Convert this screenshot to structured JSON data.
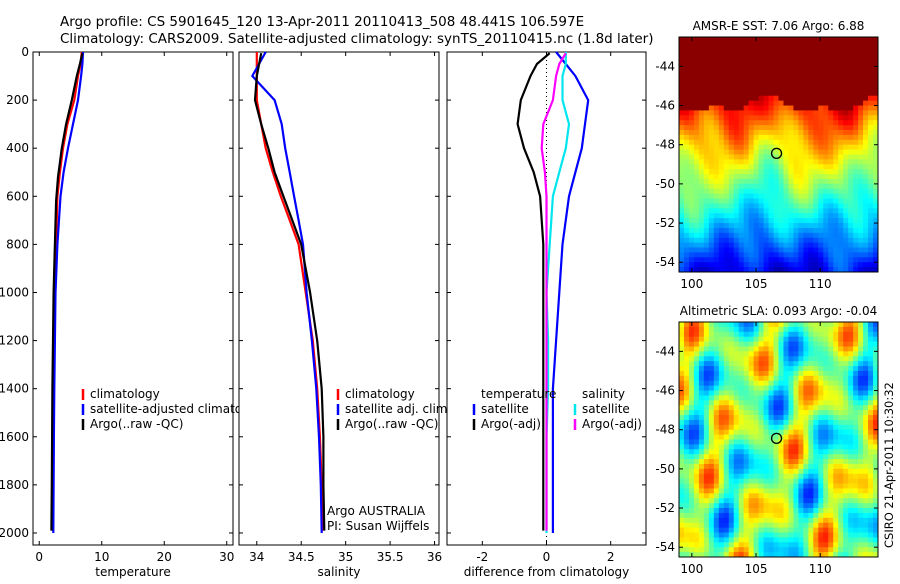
{
  "header": {
    "line1": "Argo profile: CS 5901645_120 13-Apr-2011 20110413_508 48.441S 106.597E",
    "line2": "Climatology: CARS2009. Satellite-adjusted climatology: synTS_20110415.nc (1.8d later)"
  },
  "side_stamp": "CSIRO 21-Apr-2011 10:30:32",
  "colors": {
    "climatology": "#ff0000",
    "satellite": "#0000ff",
    "argo": "#000000",
    "cyan": "#00e5ee",
    "magenta": "#ff00ff"
  },
  "chart_data": [
    {
      "type": "line",
      "xlabel": "temperature",
      "xlim": [
        -1,
        31
      ],
      "ylim": [
        0,
        2050
      ],
      "yreverse": true,
      "xticks": [
        0,
        10,
        20,
        30
      ],
      "yticks": [
        0,
        200,
        400,
        600,
        800,
        1000,
        1200,
        1400,
        1600,
        1800,
        2000
      ],
      "legend": [
        "climatology",
        "satellite-adjusted climatology",
        "Argo(..raw -QC)"
      ],
      "series": [
        {
          "name": "climatology",
          "color": "#ff0000",
          "x": [
            6.8,
            6.6,
            6.2,
            5.6,
            4.5,
            3.8,
            3.3,
            2.9,
            2.7,
            2.5,
            2.4,
            2.3,
            2.2,
            2.1,
            2.05
          ],
          "y": [
            0,
            50,
            100,
            200,
            300,
            400,
            500,
            600,
            800,
            1000,
            1200,
            1400,
            1600,
            1800,
            1990
          ]
        },
        {
          "name": "satellite-adjusted climatology",
          "color": "#0000ff",
          "x": [
            7.0,
            6.9,
            6.7,
            6.2,
            5.4,
            4.6,
            3.9,
            3.4,
            2.9,
            2.6,
            2.5,
            2.4,
            2.35,
            2.3,
            2.25
          ],
          "y": [
            0,
            50,
            100,
            200,
            300,
            400,
            500,
            600,
            800,
            1000,
            1200,
            1400,
            1600,
            1800,
            2000
          ]
        },
        {
          "name": "Argo(..raw -QC)",
          "color": "#000000",
          "x": [
            6.9,
            6.5,
            6.0,
            5.2,
            4.3,
            3.6,
            3.0,
            2.7,
            2.5,
            2.3,
            2.2,
            2.1,
            2.05,
            2.0,
            1.95
          ],
          "y": [
            5,
            50,
            100,
            200,
            300,
            400,
            520,
            620,
            800,
            1000,
            1200,
            1400,
            1600,
            1800,
            1990
          ]
        }
      ]
    },
    {
      "type": "line",
      "xlabel": "salinity",
      "xlim": [
        33.8,
        36.05
      ],
      "ylim": [
        0,
        2050
      ],
      "yreverse": true,
      "xticks": [
        34,
        34.5,
        35,
        35.5,
        36
      ],
      "yticks": [
        0,
        200,
        400,
        600,
        800,
        1000,
        1200,
        1400,
        1600,
        1800,
        2000
      ],
      "legend": [
        "climatology",
        "satellite adj. clim.",
        "Argo(..raw -QC)"
      ],
      "annotations": [
        "Argo AUSTRALIA",
        "PI: Susan Wijffels"
      ],
      "series": [
        {
          "name": "climatology",
          "color": "#ff0000",
          "x": [
            34.0,
            34.0,
            34.0,
            34.05,
            34.1,
            34.18,
            34.27,
            34.37,
            34.47,
            34.55,
            34.63,
            34.68,
            34.71,
            34.73,
            34.74
          ],
          "y": [
            0,
            100,
            200,
            300,
            400,
            500,
            600,
            700,
            800,
            1000,
            1200,
            1400,
            1600,
            1800,
            1990
          ]
        },
        {
          "name": "satellite adj. clim.",
          "color": "#0000ff",
          "x": [
            34.1,
            33.95,
            34.2,
            34.28,
            34.32,
            34.37,
            34.42,
            34.47,
            34.52,
            34.56,
            34.62,
            34.67,
            34.7,
            34.72,
            34.73
          ],
          "y": [
            0,
            100,
            200,
            300,
            400,
            500,
            600,
            700,
            800,
            1000,
            1200,
            1400,
            1600,
            1800,
            2000
          ]
        },
        {
          "name": "Argo(..raw -QC)",
          "color": "#000000",
          "x": [
            34.05,
            34.0,
            33.98,
            34.05,
            34.13,
            34.2,
            34.3,
            34.4,
            34.5,
            34.6,
            34.68,
            34.73,
            34.75,
            34.75,
            34.76
          ],
          "y": [
            5,
            100,
            200,
            300,
            400,
            500,
            600,
            700,
            800,
            1000,
            1200,
            1400,
            1600,
            1800,
            1990
          ]
        }
      ]
    },
    {
      "type": "line",
      "xlabel": "difference from climatology",
      "xlim": [
        -3.1,
        3.1
      ],
      "ylim": [
        0,
        2050
      ],
      "yreverse": true,
      "xticks": [
        -2,
        0,
        2
      ],
      "legend_groups": [
        {
          "title": "temperature",
          "items": [
            "satellite",
            "Argo(-adj)"
          ]
        },
        {
          "title": "salinity",
          "items": [
            "satellite",
            "Argo(-adj)"
          ]
        }
      ],
      "series": [
        {
          "name": "temperature satellite",
          "color": "#0000ff",
          "x": [
            0.3,
            0.6,
            0.9,
            1.3,
            1.2,
            1.1,
            0.9,
            0.7,
            0.5,
            0.4,
            0.3,
            0.2,
            0.2,
            0.2,
            0.2
          ],
          "y": [
            0,
            50,
            100,
            200,
            300,
            400,
            500,
            600,
            800,
            1000,
            1200,
            1400,
            1600,
            1800,
            2000
          ]
        },
        {
          "name": "temperature Argo(-adj)",
          "color": "#000000",
          "x": [
            0.1,
            -0.3,
            -0.5,
            -0.8,
            -0.9,
            -0.7,
            -0.4,
            -0.2,
            -0.1,
            -0.1,
            -0.1,
            -0.1,
            -0.1,
            -0.1,
            -0.1
          ],
          "y": [
            5,
            50,
            100,
            200,
            300,
            400,
            500,
            600,
            800,
            1000,
            1200,
            1400,
            1600,
            1800,
            1990
          ]
        },
        {
          "name": "salinity satellite",
          "color": "#00e5ee",
          "x": [
            0.6,
            0.6,
            0.5,
            0.5,
            0.7,
            0.6,
            0.4,
            0.2,
            0.1,
            0.0,
            0.05,
            0.05,
            0.0,
            0.0,
            0.0
          ],
          "y": [
            0,
            50,
            100,
            200,
            300,
            400,
            500,
            600,
            800,
            1000,
            1200,
            1400,
            1600,
            1800,
            2000
          ]
        },
        {
          "name": "salinity Argo(-adj)",
          "color": "#ff00ff",
          "x": [
            0.6,
            0.4,
            0.3,
            0.2,
            -0.1,
            -0.15,
            -0.05,
            0.0,
            0.0,
            0.0,
            0.0,
            0.0,
            0.0,
            0.0,
            0.0
          ],
          "y": [
            5,
            50,
            100,
            200,
            300,
            400,
            500,
            600,
            800,
            1000,
            1200,
            1400,
            1600,
            1800,
            1990
          ]
        }
      ]
    },
    {
      "type": "heatmap",
      "title": "AMSR-E SST: 7.06 Argo: 6.88",
      "xlim": [
        99,
        114.5
      ],
      "ylim": [
        -54.5,
        -42.5
      ],
      "xticks": [
        100,
        105,
        110
      ],
      "yticks": [
        -44,
        -46,
        -48,
        -50,
        -52,
        -54
      ],
      "marker": {
        "lon": 106.597,
        "lat": -48.441
      }
    },
    {
      "type": "heatmap",
      "title": "Altimetric SLA: 0.093 Argo: -0.04",
      "xlim": [
        99,
        114.5
      ],
      "ylim": [
        -54.5,
        -42.5
      ],
      "xticks": [
        100,
        105,
        110
      ],
      "yticks": [
        -44,
        -46,
        -48,
        -50,
        -52,
        -54
      ],
      "marker": {
        "lon": 106.597,
        "lat": -48.441
      }
    }
  ]
}
